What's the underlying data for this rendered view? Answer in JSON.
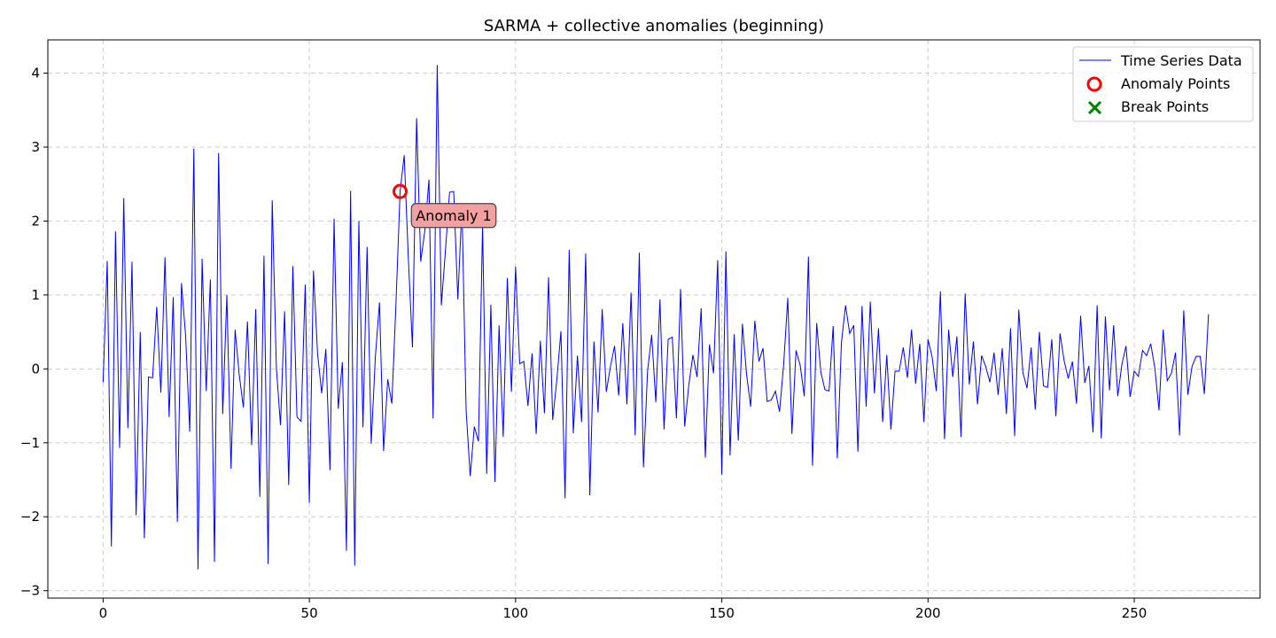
{
  "chart_data": {
    "type": "line",
    "title": "SARMA + collective anomalies (beginning)",
    "xlabel": "",
    "ylabel": "",
    "xlim": [
      -13.4,
      280.5
    ],
    "ylim": [
      -3.1,
      4.45
    ],
    "xticks": [
      0,
      50,
      100,
      150,
      200,
      250
    ],
    "yticks": [
      -3,
      -2,
      -1,
      0,
      1,
      2,
      3,
      4
    ],
    "grid": true,
    "legend_position": "top-right",
    "series": [
      {
        "name": "Time Series Data",
        "color": "#0000ff",
        "x_start": 0,
        "values": [
          -0.18,
          1.46,
          -2.4,
          1.86,
          -1.07,
          2.31,
          -0.8,
          1.45,
          -1.98,
          0.5,
          -2.29,
          -0.11,
          -0.12,
          0.84,
          -0.32,
          1.51,
          -0.65,
          0.97,
          -2.07,
          1.16,
          0.45,
          -0.85,
          2.98,
          -2.71,
          1.49,
          -0.3,
          1.21,
          -2.61,
          2.92,
          -0.61,
          1.0,
          -1.35,
          0.53,
          -0.08,
          -0.52,
          0.64,
          -1.03,
          0.81,
          -1.73,
          1.53,
          -2.64,
          2.28,
          0.02,
          -0.76,
          0.78,
          -1.57,
          1.39,
          -0.65,
          -0.71,
          1.14,
          -1.81,
          1.33,
          0.2,
          -0.33,
          0.27,
          -1.37,
          2.03,
          -0.54,
          0.09,
          -2.46,
          2.41,
          -2.66,
          2.0,
          -0.79,
          1.65,
          -1.01,
          0.16,
          0.9,
          -1.11,
          -0.14,
          -0.47,
          0.88,
          2.4,
          2.89,
          1.5,
          0.29,
          3.39,
          1.45,
          1.87,
          2.56,
          -0.67,
          4.11,
          0.86,
          1.6,
          2.39,
          2.4,
          0.94,
          2.2,
          -0.55,
          -1.45,
          -0.78,
          -0.98,
          1.95,
          -1.42,
          0.87,
          -1.53,
          0.59,
          -0.92,
          1.23,
          -0.31,
          1.38,
          0.07,
          0.1,
          -0.5,
          0.21,
          -0.88,
          0.38,
          -0.6,
          1.24,
          -0.69,
          -0.15,
          0.51,
          -1.75,
          1.61,
          -0.87,
          0.18,
          -0.72,
          1.56,
          -1.71,
          0.37,
          -0.59,
          0.81,
          -0.31,
          0.03,
          0.31,
          -0.36,
          0.62,
          -0.48,
          1.03,
          -0.9,
          1.57,
          -1.33,
          -0.03,
          0.46,
          -0.45,
          0.94,
          -0.82,
          0.4,
          0.43,
          -0.67,
          1.08,
          -0.78,
          -0.22,
          0.19,
          -0.11,
          0.82,
          -1.2,
          0.33,
          -0.06,
          1.47,
          -1.43,
          1.59,
          -1.17,
          0.47,
          -0.97,
          0.61,
          -0.07,
          -0.51,
          0.65,
          0.1,
          0.28,
          -0.44,
          -0.42,
          -0.3,
          -0.58,
          0.06,
          0.96,
          -0.88,
          0.25,
          0.05,
          -0.37,
          1.52,
          -1.31,
          0.62,
          -0.04,
          -0.28,
          -0.3,
          0.58,
          -1.21,
          0.35,
          0.86,
          0.48,
          0.59,
          -1.12,
          0.85,
          -0.51,
          0.91,
          -0.33,
          0.55,
          -0.72,
          0.19,
          -0.82,
          -0.03,
          -0.03,
          0.29,
          -0.12,
          0.53,
          -0.2,
          0.34,
          -0.72,
          0.4,
          0.16,
          -0.3,
          1.05,
          -0.95,
          0.53,
          -0.11,
          0.44,
          -0.92,
          1.02,
          -0.21,
          0.37,
          -0.48,
          0.18,
          0.03,
          -0.18,
          0.22,
          -0.35,
          0.28,
          -0.61,
          0.55,
          -0.91,
          0.8,
          -0.05,
          -0.26,
          0.29,
          -0.55,
          0.5,
          -0.23,
          -0.25,
          0.4,
          -0.64,
          0.48,
          0.11,
          -0.13,
          0.1,
          -0.47,
          0.72,
          -0.19,
          0.04,
          -0.86,
          0.86,
          -0.94,
          0.71,
          -0.29,
          0.59,
          -0.37,
          0.06,
          0.31,
          -0.38,
          -0.03,
          -0.1,
          0.25,
          0.18,
          0.34,
          0.01,
          -0.56,
          0.53,
          -0.16,
          -0.06,
          0.22,
          -0.9,
          0.79,
          -0.35,
          0.03,
          0.17,
          0.17,
          -0.34,
          0.74
        ]
      },
      {
        "name": "Anomaly Points",
        "color": "#ff0000",
        "marker": "circle-open",
        "points": [
          {
            "x": 72,
            "y": 2.4
          }
        ]
      },
      {
        "name": "Break Points",
        "color": "#008000",
        "marker": "x",
        "points": []
      }
    ],
    "annotations": [
      {
        "text": "Anomaly 1",
        "x": 85,
        "y": 2.08,
        "background": "#f4a0a0"
      }
    ]
  }
}
